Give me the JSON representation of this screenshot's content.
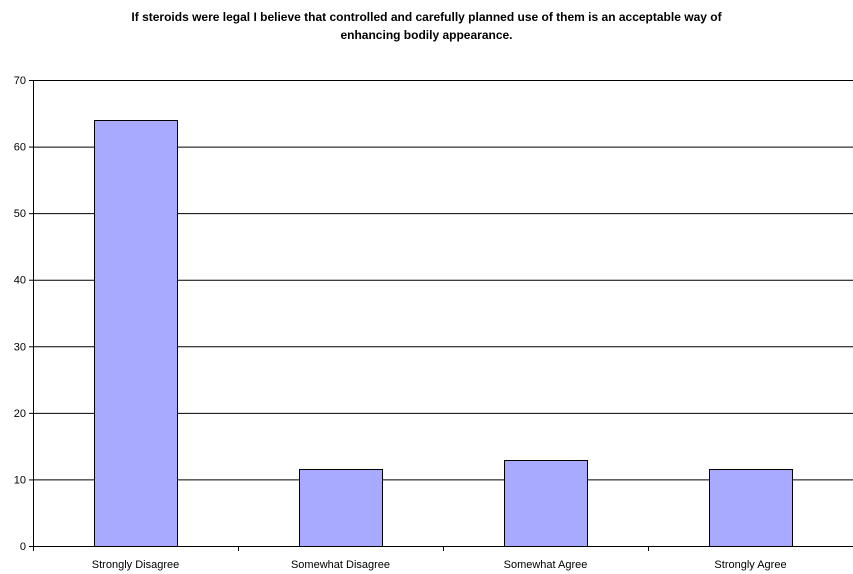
{
  "chart_data": {
    "type": "bar",
    "title": "If steroids were legal I believe that controlled and carefully planned use of them is an acceptable way of enhancing bodily appearance.",
    "categories": [
      "Strongly Disagree",
      "Somewhat Disagree",
      "Somewhat Agree",
      "Strongly Agree"
    ],
    "values": [
      64,
      11.6,
      12.9,
      11.6
    ],
    "ylim": [
      0,
      70
    ],
    "yticks": [
      0,
      10,
      20,
      30,
      40,
      50,
      60,
      70
    ],
    "grid": true,
    "legend": "none",
    "colors": {
      "bar_fill": "#a8aaff",
      "bar_stroke": "#000000",
      "grid": "#000000",
      "axis": "#000000"
    }
  }
}
